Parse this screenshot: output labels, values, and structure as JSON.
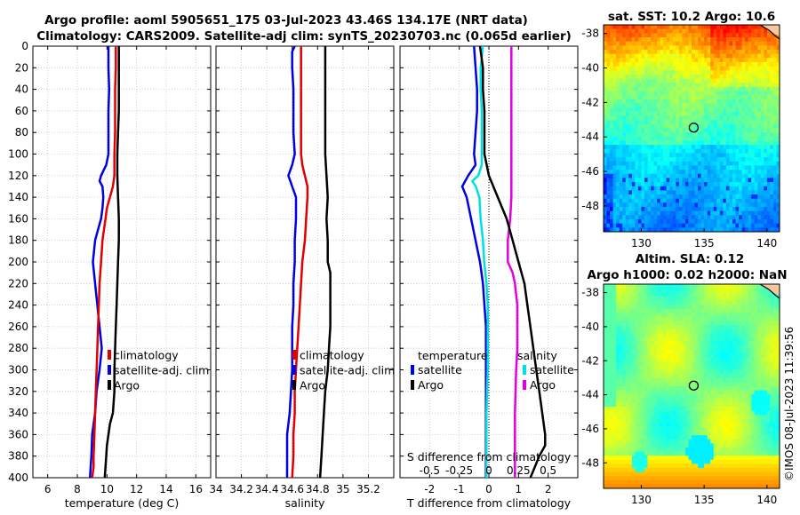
{
  "title": {
    "line1": "Argo profile: aoml 5905651_175 03-Jul-2023 43.46S 134.17E (NRT data)",
    "line2": "Climatology: CARS2009. Satellite-adj clim: synTS_20230703.nc (0.065d earlier)"
  },
  "stamp": "©IMOS 08-Jul-2023 11:39:56",
  "colors": {
    "climatology": "#e00000",
    "satellite": "#0000e0",
    "argo": "#000000",
    "t_satellite": "#00e0e0",
    "s_satellite": "#e000e0",
    "grid": "#c8c8c8"
  },
  "depth_ticks": [
    "0",
    "20",
    "40",
    "60",
    "80",
    "100",
    "120",
    "140",
    "160",
    "180",
    "200",
    "220",
    "240",
    "260",
    "280",
    "300",
    "320",
    "340",
    "360",
    "380",
    "400"
  ],
  "chart_data": [
    {
      "type": "line",
      "name": "temperature",
      "xlabel": "temperature (deg C)",
      "xlim": [
        5,
        17
      ],
      "ylim": [
        400,
        0
      ],
      "x_ticks": [
        6,
        8,
        10,
        12,
        14,
        16
      ],
      "legend": [
        "climatology",
        "satellite-adj. clim",
        "Argo"
      ],
      "series": [
        {
          "name": "climatology",
          "x": [
            10.6,
            10.6,
            10.55,
            10.55,
            10.55,
            10.5,
            10.5,
            10.5,
            10.4,
            10.2,
            10.0,
            9.9,
            9.8,
            9.7,
            9.6,
            9.5,
            9.45,
            9.4,
            9.35,
            9.3,
            9.25,
            9.2,
            9.15,
            9.1,
            9.1,
            9.05,
            9.0
          ],
          "y": [
            0,
            20,
            40,
            60,
            80,
            100,
            110,
            120,
            130,
            140,
            150,
            160,
            170,
            180,
            200,
            220,
            240,
            260,
            280,
            300,
            320,
            340,
            360,
            380,
            390,
            395,
            400
          ]
        },
        {
          "name": "satellite-adj. clim",
          "x": [
            10.1,
            10.1,
            10.15,
            10.1,
            10.1,
            10.1,
            9.95,
            9.6,
            9.5,
            9.7,
            9.75,
            9.7,
            9.6,
            9.4,
            9.2,
            9.05,
            9.65,
            9.5,
            9.3,
            9.2,
            9.1,
            9.0,
            8.95,
            8.9,
            8.85
          ],
          "y": [
            0,
            20,
            40,
            60,
            80,
            100,
            110,
            120,
            125,
            130,
            140,
            150,
            160,
            170,
            180,
            200,
            280,
            300,
            320,
            340,
            350,
            360,
            380,
            390,
            400
          ]
        },
        {
          "name": "Argo",
          "x": [
            10.8,
            10.8,
            10.8,
            10.8,
            10.75,
            10.7,
            10.7,
            10.75,
            10.8,
            10.8,
            10.75,
            10.7,
            10.65,
            10.6,
            10.55,
            10.5,
            10.5,
            10.4,
            10.2,
            10.1,
            10.0,
            9.95,
            9.9,
            9.85
          ],
          "y": [
            0,
            20,
            40,
            60,
            80,
            100,
            120,
            140,
            160,
            180,
            200,
            220,
            240,
            260,
            280,
            300,
            320,
            340,
            350,
            360,
            370,
            380,
            390,
            400
          ]
        }
      ]
    },
    {
      "type": "line",
      "name": "salinity",
      "xlabel": "salinity",
      "xlim": [
        34,
        35.4
      ],
      "ylim": [
        400,
        0
      ],
      "x_ticks": [
        34,
        34.2,
        34.4,
        34.6,
        34.8,
        35,
        35.2
      ],
      "x_tick_labels": [
        "34",
        "34.2",
        "34.4",
        "34.6",
        "34.8",
        "35",
        "35.2"
      ],
      "legend": [
        "climatology",
        "satellite-adj. clim",
        "Argo"
      ],
      "series": [
        {
          "name": "climatology",
          "x": [
            34.67,
            34.67,
            34.67,
            34.67,
            34.67,
            34.67,
            34.68,
            34.7,
            34.72,
            34.72,
            34.71,
            34.7,
            34.68,
            34.67,
            34.66,
            34.65,
            34.64,
            34.63,
            34.62,
            34.62,
            34.61,
            34.61,
            34.6
          ],
          "y": [
            0,
            20,
            40,
            60,
            80,
            100,
            110,
            120,
            130,
            140,
            160,
            180,
            200,
            220,
            240,
            260,
            280,
            300,
            320,
            340,
            360,
            380,
            400
          ]
        },
        {
          "name": "satellite-adj. clim",
          "x": [
            34.62,
            34.6,
            34.6,
            34.61,
            34.61,
            34.61,
            34.62,
            34.6,
            34.57,
            34.6,
            34.63,
            34.63,
            34.63,
            34.62,
            34.62,
            34.61,
            34.61,
            34.6,
            34.6,
            34.59,
            34.58,
            34.56,
            34.56
          ],
          "y": [
            0,
            5,
            20,
            40,
            60,
            80,
            100,
            110,
            120,
            130,
            140,
            150,
            160,
            180,
            200,
            220,
            240,
            260,
            300,
            320,
            340,
            360,
            400
          ]
        },
        {
          "name": "Argo",
          "x": [
            34.86,
            34.86,
            34.86,
            34.86,
            34.86,
            34.86,
            34.87,
            34.88,
            34.87,
            34.88,
            34.88,
            34.9,
            34.9,
            34.9,
            34.9,
            34.89,
            34.88,
            34.86,
            34.85,
            34.84,
            34.83,
            34.82
          ],
          "y": [
            0,
            20,
            40,
            60,
            80,
            100,
            120,
            140,
            160,
            180,
            200,
            210,
            220,
            240,
            260,
            280,
            300,
            320,
            340,
            360,
            380,
            400
          ]
        }
      ]
    },
    {
      "type": "line",
      "name": "difference",
      "xlabel": "T difference from climatology",
      "xlabel_top": "S difference from climatology",
      "xlim": [
        -3,
        3
      ],
      "ylim": [
        400,
        0
      ],
      "x_ticks": [
        -2,
        -1,
        0,
        1,
        2
      ],
      "x_tick_labels": [
        "-2",
        "-1",
        "0",
        "1",
        "2"
      ],
      "s_ticks": [
        "-0.5",
        "-0.25",
        "0",
        "0.25",
        "0.5"
      ],
      "legend_temperature": {
        "title": "temperature",
        "items": [
          "satellite",
          "Argo"
        ]
      },
      "legend_salinity": {
        "title": "salinity",
        "items": [
          "satellite",
          "Argo"
        ]
      },
      "series": [
        {
          "name": "T satellite",
          "x": [
            -0.5,
            -0.45,
            -0.4,
            -0.4,
            -0.45,
            -0.5,
            -0.45,
            -0.7,
            -0.9,
            -0.75,
            -0.6,
            -0.45,
            -0.3,
            -0.2,
            -0.15,
            -0.1,
            -0.1,
            -0.1,
            -0.1,
            -0.1,
            -0.1
          ],
          "y": [
            0,
            20,
            40,
            60,
            80,
            100,
            110,
            120,
            130,
            140,
            160,
            180,
            200,
            220,
            240,
            260,
            280,
            300,
            340,
            380,
            400
          ]
        },
        {
          "name": "T Argo",
          "x": [
            -0.3,
            -0.2,
            -0.2,
            -0.15,
            -0.15,
            -0.15,
            0.0,
            0.3,
            0.6,
            0.8,
            1.0,
            1.2,
            1.3,
            1.4,
            1.5,
            1.6,
            1.7,
            1.8,
            1.9,
            1.9,
            1.7,
            1.4
          ],
          "y": [
            0,
            20,
            40,
            60,
            80,
            100,
            120,
            140,
            160,
            180,
            200,
            220,
            240,
            260,
            280,
            300,
            320,
            340,
            360,
            370,
            380,
            400
          ]
        },
        {
          "name": "S satellite",
          "x": [
            -0.05,
            -0.07,
            -0.07,
            -0.06,
            -0.06,
            -0.06,
            -0.06,
            -0.09,
            -0.14,
            -0.11,
            -0.08,
            -0.07,
            -0.05,
            -0.04,
            -0.02,
            -0.01,
            -0.01,
            -0.01,
            -0.01,
            -0.02,
            -0.02,
            -0.02
          ],
          "y": [
            0,
            20,
            40,
            60,
            80,
            100,
            110,
            120,
            125,
            130,
            140,
            160,
            180,
            200,
            220,
            240,
            260,
            280,
            300,
            340,
            360,
            400
          ]
        },
        {
          "name": "S Argo",
          "x": [
            0.19,
            0.19,
            0.19,
            0.19,
            0.19,
            0.19,
            0.19,
            0.19,
            0.18,
            0.16,
            0.16,
            0.2,
            0.22,
            0.24,
            0.24,
            0.24,
            0.23,
            0.22,
            0.22,
            0.22
          ],
          "y": [
            0,
            20,
            40,
            60,
            80,
            100,
            120,
            140,
            160,
            180,
            200,
            210,
            220,
            240,
            260,
            280,
            300,
            340,
            360,
            400
          ]
        }
      ]
    },
    {
      "type": "heatmap",
      "name": "sst-map",
      "title": "sat. SST: 10.2 Argo: 10.6",
      "xlim": [
        127,
        141
      ],
      "ylim": [
        -49.5,
        -37.5
      ],
      "x_ticks": [
        130,
        135,
        140
      ],
      "y_ticks": [
        -38,
        -40,
        -42,
        -44,
        -46,
        -48
      ],
      "marker": {
        "lon": 134.17,
        "lat": -43.46
      }
    },
    {
      "type": "heatmap",
      "name": "sla-map",
      "title_line1": "Altim. SLA: 0.12",
      "title_line2": "Argo h1000: 0.02 h2000: NaN",
      "xlim": [
        127,
        141
      ],
      "ylim": [
        -49.5,
        -37.5
      ],
      "x_ticks": [
        130,
        135,
        140
      ],
      "y_ticks": [
        -38,
        -40,
        -42,
        -44,
        -46,
        -48
      ],
      "marker": {
        "lon": 134.17,
        "lat": -43.46
      }
    }
  ]
}
